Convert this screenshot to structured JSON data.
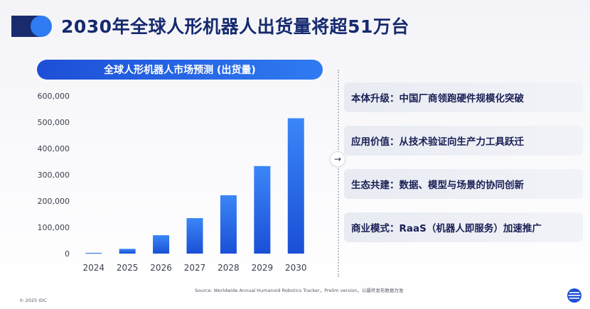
{
  "header": {
    "title": "2030年全球人形机器人出货量将超51万台"
  },
  "chart_banner": {
    "label": "全球人形机器人市场预测 (出货量)"
  },
  "chart_data": {
    "type": "bar",
    "title": "全球人形机器人市场预测 (出货量)",
    "categories": [
      "2024",
      "2025",
      "2026",
      "2027",
      "2028",
      "2029",
      "2030"
    ],
    "values": [
      2000,
      18000,
      70000,
      135000,
      222000,
      333000,
      515000
    ],
    "ylim": [
      0,
      600000
    ],
    "yticks": [
      0,
      100000,
      200000,
      300000,
      400000,
      500000,
      600000
    ],
    "ytick_labels": [
      "0",
      "100,000",
      "200,000",
      "300,000",
      "400,000",
      "500,000",
      "600,000"
    ],
    "grid": false,
    "legend": "none",
    "color_top": "#3b86f7",
    "color_bottom": "#1a4fd6"
  },
  "key_points": [
    "本体升级：中国厂商领跑硬件规模化突破",
    "应用价值：从技术验证向生产力工具跃迁",
    "生态共建：数据、模型与场景的协同创新",
    "商业模式：RaaS（机器人即服务）加速推广"
  ],
  "arrow_icon": "→",
  "footer": {
    "source": "Source: Worldwide Annual Humanoid Robotics Tracker，Prelim version，以最终发布数据为准",
    "copyright": "© 2025 IDC"
  },
  "colors": {
    "accent": "#1d4fd6",
    "title": "#162a6e",
    "card_bg": "#e8ebf2"
  }
}
